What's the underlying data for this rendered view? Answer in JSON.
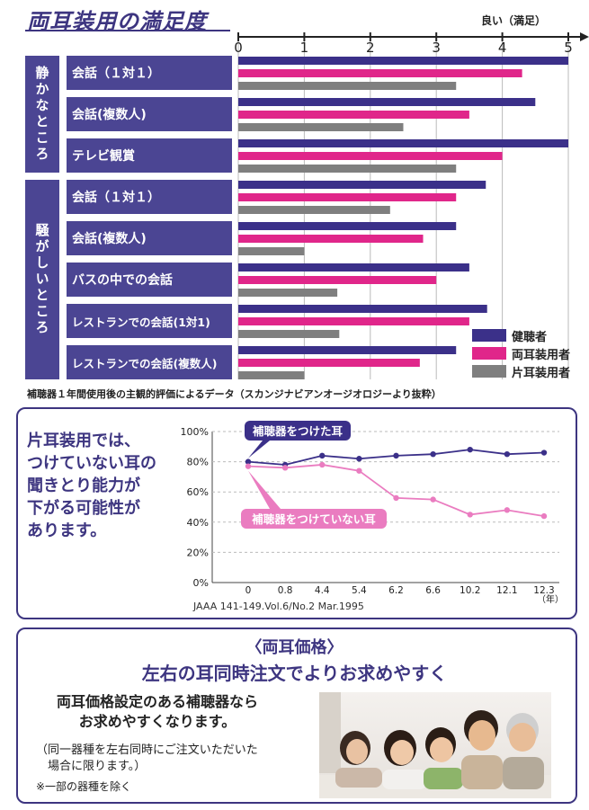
{
  "title": "両耳装用の満足度",
  "good_label": "良い（満足）",
  "chart_data": [
    {
      "type": "bar",
      "orientation": "horizontal",
      "xlim": [
        0,
        5
      ],
      "x_ticks": [
        "0",
        "1",
        "2",
        "3",
        "4",
        "5"
      ],
      "groups": [
        {
          "label": "静かなところ",
          "categories": [
            "会話（１対１）",
            "会話(複数人)",
            "テレビ観賞"
          ]
        },
        {
          "label": "騒がしいところ",
          "categories": [
            "会話（１対１）",
            "会話(複数人)",
            "バスの中での会話",
            "レストランでの会話(1対1)",
            "レストランでの会話(複数人)"
          ]
        }
      ],
      "categories": [
        "会話（１対１）",
        "会話(複数人)",
        "テレビ観賞",
        "会話（１対１）",
        "会話(複数人)",
        "バスの中での会話",
        "レストランでの会話(1対1)",
        "レストランでの会話(複数人)"
      ],
      "series": [
        {
          "name": "健聴者",
          "color": "#3b3089",
          "values": [
            5.0,
            4.5,
            5.0,
            3.75,
            3.3,
            3.5,
            3.77,
            3.3
          ]
        },
        {
          "name": "両耳装用者",
          "color": "#e0268a",
          "values": [
            4.3,
            3.5,
            4.0,
            3.3,
            2.8,
            3.0,
            3.5,
            2.75
          ]
        },
        {
          "name": "片耳装用者",
          "color": "#7f7f7f",
          "values": [
            3.3,
            2.5,
            3.3,
            2.3,
            1.0,
            1.5,
            1.53,
            1.0
          ]
        }
      ],
      "footnote": "補聴器１年間使用後の主観的評価によるデータ（スカンジナビアンオージオロジーより抜粋）"
    },
    {
      "type": "line",
      "x": [
        "0",
        "0.8",
        "4.4",
        "5.4",
        "6.2",
        "6.6",
        "10.2",
        "12.1",
        "12.3"
      ],
      "x_unit": "（年）",
      "y_ticks": [
        "0%",
        "20%",
        "40%",
        "60%",
        "80%",
        "100%"
      ],
      "ylim": [
        0,
        100
      ],
      "series": [
        {
          "name": "補聴器をつけた耳",
          "color": "#3b3089",
          "values": [
            80,
            78,
            84,
            82,
            84,
            85,
            88,
            85,
            86
          ]
        },
        {
          "name": "補聴器をつけていない耳",
          "color": "#ea7cc0",
          "values": [
            77,
            76,
            78,
            74,
            56,
            55,
            45,
            48,
            44
          ]
        }
      ],
      "citation": "JAAA  141-149.Vol.6/No.2 Mar.1995"
    }
  ],
  "monaural_message": [
    "片耳装用では、",
    "つけていない耳の",
    "聞きとり能力が",
    "下がる可能性が",
    "あります。"
  ],
  "price": {
    "heading": "〈両耳価格〉",
    "subheading": "左右の耳同時注文でよりお求めやすく",
    "body": [
      "両耳価格設定のある補聴器なら",
      "お求めやすくなります。"
    ],
    "note": [
      "（同一器種を左右同時にご注文いただいた",
      "　場合に限ります。）"
    ],
    "note2": "※一部の器種を除く"
  }
}
